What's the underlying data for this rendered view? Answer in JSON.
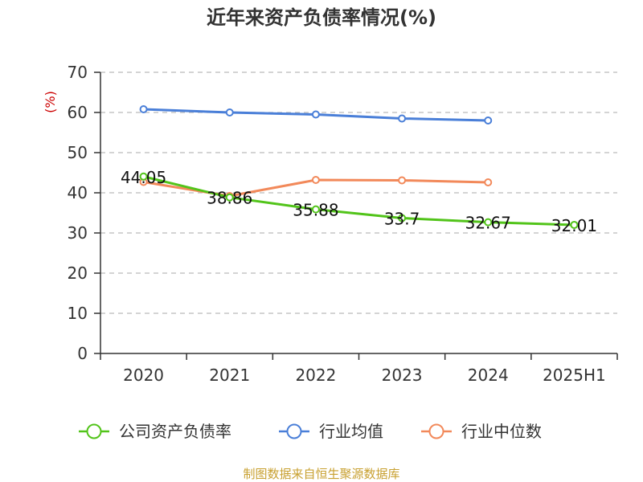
{
  "chart_data": {
    "type": "line",
    "title": "近年来资产负债率情况(%)",
    "ylabel": "(%)",
    "categories": [
      "2020",
      "2021",
      "2022",
      "2023",
      "2024",
      "2025H1"
    ],
    "ylim": [
      0,
      70
    ],
    "yticks": [
      "0",
      "10",
      "20",
      "30",
      "40",
      "50",
      "60",
      "70"
    ],
    "grid": true,
    "legend_position": "bottom",
    "series": [
      {
        "name": "公司资产负债率",
        "color": "#52c41a",
        "values": [
          44.05,
          38.86,
          35.88,
          33.7,
          32.67,
          32.01
        ],
        "labels": [
          "44.05",
          "38.86",
          "35.88",
          "33.7",
          "32.67",
          "32.01"
        ]
      },
      {
        "name": "行业均值",
        "color": "#4a7fd8",
        "values": [
          60.8,
          60.0,
          59.5,
          58.5,
          58.0,
          null
        ]
      },
      {
        "name": "行业中位数",
        "color": "#f2895a",
        "values": [
          42.7,
          39.2,
          43.2,
          43.1,
          42.6,
          null
        ]
      }
    ]
  },
  "source": "制图数据来自恒生聚源数据库",
  "colors": {
    "ylabel": "#cc0000",
    "source": "#c8a030",
    "axis": "#333333",
    "grid": "#bbbbbb"
  }
}
